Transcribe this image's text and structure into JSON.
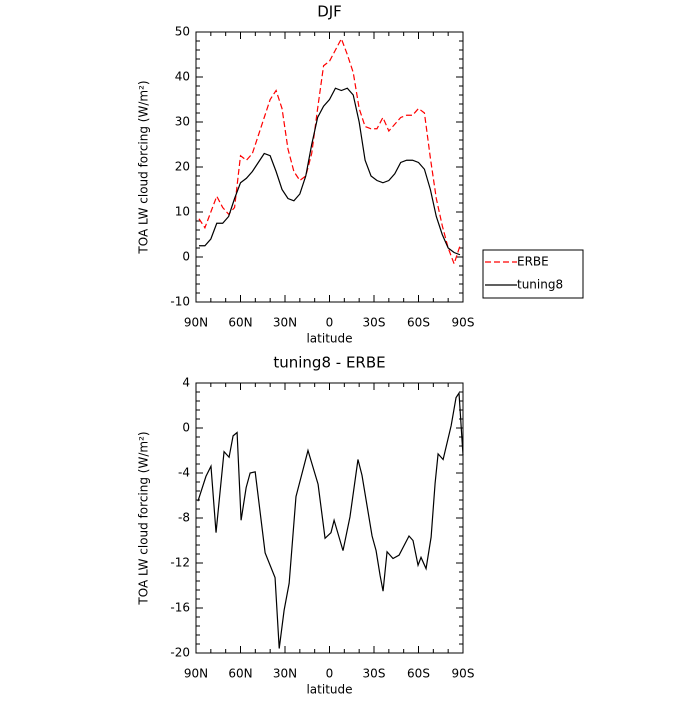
{
  "chart_data": [
    {
      "type": "line",
      "title": "DJF",
      "y_label": "TOA LW cloud forcing (W/m²)",
      "x_label": "latitude",
      "x": [
        88,
        84,
        80,
        76,
        72,
        68,
        64,
        60,
        56,
        52,
        48,
        44,
        40,
        36,
        32,
        28,
        24,
        20,
        16,
        12,
        8,
        4,
        0,
        -4,
        -8,
        -12,
        -16,
        -20,
        -24,
        -28,
        -32,
        -36,
        -40,
        -44,
        -48,
        -52,
        -56,
        -60,
        -64,
        -68,
        -72,
        -76,
        -80,
        -84,
        -88
      ],
      "series": [
        {
          "name": "ERBE",
          "color": "#ff0000",
          "line_style": "dashed",
          "values": [
            8.5,
            6.5,
            10,
            13.5,
            11,
            9.5,
            11,
            22.5,
            21.5,
            23,
            27,
            31,
            35,
            37,
            33,
            24,
            19,
            17,
            18,
            23,
            33,
            42.5,
            43.5,
            46,
            48.5,
            45,
            41,
            33,
            29,
            28.5,
            28.5,
            31,
            28,
            29.5,
            31,
            31.5,
            31.5,
            33,
            32,
            22,
            13,
            7,
            2,
            -1.5,
            2.5
          ]
        },
        {
          "name": "tuning8",
          "color": "#000000",
          "line_style": "solid",
          "values": [
            2.5,
            2.5,
            4,
            7.5,
            7.5,
            9,
            13,
            16.5,
            17.5,
            19,
            21,
            23,
            22.5,
            19,
            15,
            13,
            12.5,
            14,
            18,
            25,
            31,
            33.5,
            35,
            37.5,
            37,
            37.5,
            36,
            30,
            21.5,
            18,
            17,
            16.5,
            17,
            18.5,
            21,
            21.5,
            21.5,
            21,
            19.5,
            15,
            9,
            5,
            2,
            1,
            0.5
          ]
        }
      ],
      "xlim": [
        90,
        -90
      ],
      "xticks": [
        {
          "value": 90,
          "label": "90N"
        },
        {
          "value": 60,
          "label": "60N"
        },
        {
          "value": 30,
          "label": "30N"
        },
        0,
        {
          "value": -30,
          "label": "30S"
        },
        {
          "value": -60,
          "label": "60S"
        },
        {
          "value": -90,
          "label": "90S"
        }
      ],
      "ylim": [
        -10,
        50
      ],
      "yticks": [
        -10,
        0,
        10,
        20,
        30,
        40,
        50
      ],
      "legend_position": "right"
    },
    {
      "type": "line",
      "title": "tuning8 - ERBE",
      "y_label": "TOA LW cloud forcing (W/m²)",
      "x_label": "latitude",
      "x": [
        88.7,
        83.3,
        79.9,
        76.5,
        71.1,
        67.7,
        65.0,
        62.3,
        59.6,
        56.2,
        53.5,
        50.1,
        43.4,
        36.7,
        33.9,
        30.6,
        27.2,
        22.6,
        14.5,
        7.7,
        3.0,
        -1.0,
        -3.1,
        -9.1,
        -13.8,
        -19.2,
        -21.9,
        -28.7,
        -31.4,
        -34.1,
        -36.1,
        -38.8,
        -42.8,
        -46.9,
        -53.6,
        -56.3,
        -59.7,
        -61.7,
        -65.1,
        -68.5,
        -71.2,
        -73.2,
        -76.6,
        -82.0,
        -85.3,
        -87.3,
        -90
      ],
      "series": [
        {
          "color": "#000000",
          "line_style": "solid",
          "values": [
            -6.5,
            -4.3,
            -3.4,
            -9.3,
            -2.1,
            -2.6,
            -0.7,
            -0.4,
            -8.2,
            -5.3,
            -4.0,
            -3.9,
            -11.1,
            -13.3,
            -19.6,
            -16.2,
            -13.8,
            -6.1,
            -2.0,
            -5.0,
            -9.8,
            -9.3,
            -8.2,
            -10.9,
            -7.9,
            -2.8,
            -4.2,
            -9.6,
            -10.9,
            -13.1,
            -14.5,
            -11.0,
            -11.6,
            -11.3,
            -9.6,
            -10.0,
            -12.2,
            -11.5,
            -12.5,
            -9.7,
            -4.9,
            -2.3,
            -2.8,
            0.2,
            2.7,
            3.1,
            -2.4
          ]
        }
      ],
      "xlim": [
        90,
        -90
      ],
      "xticks": [
        {
          "value": 90,
          "label": "90N"
        },
        {
          "value": 60,
          "label": "60N"
        },
        {
          "value": 30,
          "label": "30N"
        },
        0,
        {
          "value": -30,
          "label": "30S"
        },
        {
          "value": -60,
          "label": "60S"
        },
        {
          "value": -90,
          "label": "90S"
        }
      ],
      "ylim": [
        -20,
        4
      ],
      "yticks": [
        -20,
        -16,
        -12,
        -8,
        -4,
        0,
        4
      ]
    }
  ]
}
